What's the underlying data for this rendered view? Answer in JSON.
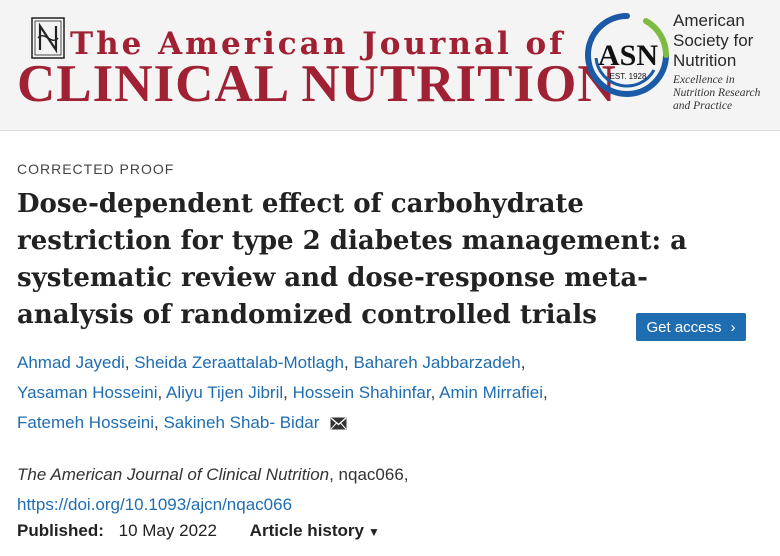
{
  "header": {
    "journal_line1": "The American Journal of",
    "journal_line2": "CLINICAL NUTRITION",
    "asn_logo_text": "ASN",
    "asn_est": "EST. 1928",
    "asn_org_lines": [
      "American",
      "Society for",
      "Nutrition"
    ],
    "asn_tagline_lines": [
      "Excellence in",
      "Nutrition Research",
      "and Practice"
    ]
  },
  "article": {
    "type": "CORRECTED PROOF",
    "title": "Dose-dependent effect of carbohydrate restriction for type 2 diabetes management: a systematic review and dose-response meta-analysis of randomized controlled trials",
    "get_access_label": "Get access",
    "authors": [
      "Ahmad Jayedi",
      "Sheida Zeraattalab-Motlagh",
      "Bahareh Jabbarzadeh",
      "Yasaman Hosseini",
      "Aliyu Tijen Jibril",
      "Hossein Shahinfar",
      "Amin Mirrafiei",
      "Fatemeh Hosseini",
      "Sakineh Shab- Bidar"
    ],
    "journal_name": "The American Journal of Clinical Nutrition",
    "article_id": ", nqac066,",
    "doi": "https://doi.org/10.1093/ajcn/nqac066",
    "published_label": "Published:",
    "published_date": "10 May 2022",
    "history_label": "Article history"
  },
  "colors": {
    "journal_red": "#a02034",
    "link_blue": "#1f6db1",
    "asn_blue": "#1a5aa6",
    "asn_green": "#7dbb42"
  }
}
